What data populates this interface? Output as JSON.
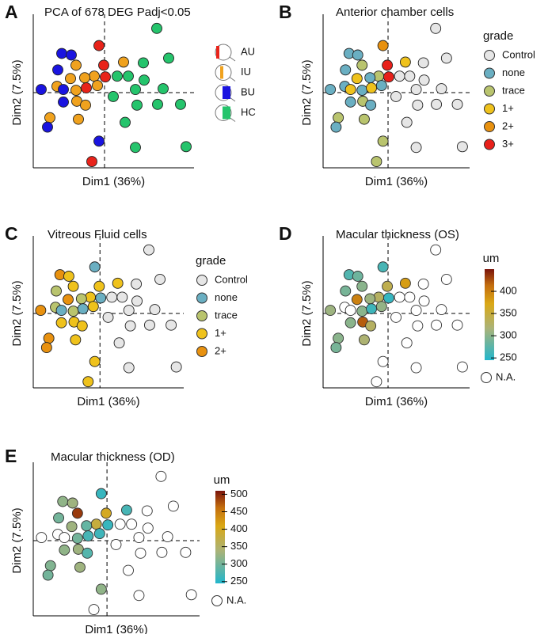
{
  "chart_data": [
    {
      "type": "scatter",
      "panel": "A",
      "title": "PCA of 678 DEG Padj<0.05",
      "xlabel": "Dim1 (36%)",
      "ylabel": "Dim2 (7.5%)",
      "xlim": [
        -9,
        11.3
      ],
      "ylim": [
        -9.6,
        9.6
      ],
      "vline": 0,
      "hline": 0,
      "x": [
        -0.7,
        6.6,
        -5.4,
        -4.2,
        -3.6,
        2.4,
        4.9,
        8.1,
        -5.9,
        -1.3,
        -0.1,
        0.1,
        1.6,
        3.0,
        5.0,
        -6.0,
        -4.3,
        -2.5,
        -0.9,
        1.1,
        3.9,
        7.4,
        -5.2,
        -3.6,
        -2.3,
        -8.0,
        6.7,
        9.6,
        -5.2,
        -3.5,
        -2.4,
        4.1,
        -6.9,
        -7.2,
        -3.3,
        2.6,
        -0.7,
        3.9,
        10.3,
        -1.6
      ],
      "y": [
        6.0,
        8.2,
        5.0,
        4.8,
        3.5,
        3.9,
        3.8,
        4.4,
        2.9,
        2.1,
        3.5,
        2.0,
        2.1,
        2.1,
        1.6,
        0.8,
        1.8,
        1.9,
        0.9,
        -0.5,
        0.4,
        0.5,
        0.4,
        0.3,
        0.6,
        0.4,
        -1.5,
        -1.5,
        -1.2,
        -1.1,
        -1.6,
        -1.6,
        -3.2,
        -4.4,
        -3.4,
        -3.8,
        -6.2,
        -7.0,
        -6.9,
        -8.8
      ],
      "groups": [
        "AU",
        "HC",
        "BU",
        "BU",
        "IU",
        "IU",
        "HC",
        "HC",
        "BU",
        "IU",
        "AU",
        "AU",
        "HC",
        "HC",
        "HC",
        "IU",
        "IU",
        "IU",
        "IU",
        "HC",
        "HC",
        "HC",
        "BU",
        "IU",
        "AU",
        "BU",
        "HC",
        "HC",
        "BU",
        "IU",
        "IU",
        "HC",
        "IU",
        "BU",
        "IU",
        "HC",
        "BU",
        "HC",
        "HC",
        "AU"
      ],
      "legend": [
        {
          "name": "AU",
          "color": "#e8231a"
        },
        {
          "name": "IU",
          "color": "#f0a21e"
        },
        {
          "name": "BU",
          "color": "#1a14e0"
        },
        {
          "name": "HC",
          "color": "#25c46c"
        }
      ]
    },
    {
      "type": "scatter",
      "panel": "B",
      "title": "Anterior chamber cells",
      "xlabel": "Dim1 (36%)",
      "ylabel": "Dim2 (7.5%)",
      "xlim": [
        -9,
        11.3
      ],
      "ylim": [
        -9.6,
        9.6
      ],
      "vline": 0,
      "hline": 0,
      "x": [
        -0.7,
        6.6,
        -5.4,
        -4.2,
        -3.6,
        2.4,
        4.9,
        8.1,
        -5.9,
        -1.3,
        -0.1,
        0.1,
        1.6,
        3.0,
        5.0,
        -6.0,
        -4.3,
        -2.5,
        -0.9,
        1.1,
        3.9,
        7.4,
        -5.2,
        -3.6,
        -2.3,
        -8.0,
        6.7,
        9.6,
        -5.2,
        -3.5,
        -2.4,
        4.1,
        -6.9,
        -7.2,
        -3.3,
        2.6,
        -0.7,
        3.9,
        10.3,
        -1.6
      ],
      "y": [
        6.0,
        8.2,
        5.0,
        4.8,
        3.5,
        3.9,
        3.8,
        4.4,
        2.9,
        2.1,
        3.5,
        2.0,
        2.1,
        2.1,
        1.6,
        0.8,
        1.8,
        1.9,
        0.9,
        -0.5,
        0.4,
        0.5,
        0.4,
        0.3,
        0.6,
        0.4,
        -1.5,
        -1.5,
        -1.2,
        -1.1,
        -1.6,
        -1.6,
        -3.2,
        -4.4,
        -3.4,
        -3.8,
        -6.2,
        -7.0,
        -6.9,
        -8.8
      ],
      "groups": [
        "2+",
        "Control",
        "none",
        "none",
        "trace",
        "1+",
        "Control",
        "Control",
        "none",
        "trace",
        "3+",
        "3+",
        "Control",
        "Control",
        "Control",
        "none",
        "1+",
        "none",
        "none",
        "Control",
        "Control",
        "Control",
        "1+",
        "none",
        "1+",
        "none",
        "Control",
        "Control",
        "none",
        "trace",
        "none",
        "Control",
        "trace",
        "none",
        "trace",
        "Control",
        "trace",
        "Control",
        "Control",
        "trace"
      ],
      "legend_title": "grade",
      "legend": [
        {
          "name": "Control",
          "color": "#e6e6e6"
        },
        {
          "name": "none",
          "color": "#6aafc2"
        },
        {
          "name": "trace",
          "color": "#b9c46e"
        },
        {
          "name": "1+",
          "color": "#efc21c"
        },
        {
          "name": "2+",
          "color": "#e8910f"
        },
        {
          "name": "3+",
          "color": "#e8201a"
        }
      ]
    },
    {
      "type": "scatter",
      "panel": "C",
      "title": "Vitreous Fluid cells",
      "xlabel": "Dim1 (36%)",
      "ylabel": "Dim2 (7.5%)",
      "xlim": [
        -9,
        11.3
      ],
      "ylim": [
        -9.6,
        9.6
      ],
      "vline": 0,
      "hline": 0,
      "x": [
        -0.7,
        6.6,
        -5.4,
        -4.2,
        -3.6,
        2.4,
        4.9,
        8.1,
        -5.9,
        -1.3,
        -0.1,
        0.1,
        1.6,
        3.0,
        5.0,
        -6.0,
        -4.3,
        -2.5,
        -0.9,
        1.1,
        3.9,
        7.4,
        -5.2,
        -3.6,
        -2.3,
        -8.0,
        6.7,
        9.6,
        -5.2,
        -3.5,
        -2.4,
        4.1,
        -6.9,
        -7.2,
        -3.3,
        2.6,
        -0.7,
        3.9,
        10.3,
        -1.6
      ],
      "y": [
        6.0,
        8.2,
        5.0,
        4.8,
        3.5,
        3.9,
        3.8,
        4.4,
        2.9,
        2.1,
        3.5,
        2.0,
        2.1,
        2.1,
        1.6,
        0.8,
        1.8,
        1.9,
        0.9,
        -0.5,
        0.4,
        0.5,
        0.4,
        0.3,
        0.6,
        0.4,
        -1.5,
        -1.5,
        -1.2,
        -1.1,
        -1.6,
        -1.6,
        -3.2,
        -4.4,
        -3.4,
        -3.8,
        -6.2,
        -7.0,
        -6.9,
        -8.8
      ],
      "groups": [
        "none",
        "Control",
        "2+",
        "1+",
        "1+",
        "1+",
        "Control",
        "Control",
        "trace",
        "1+",
        "1+",
        "none",
        "Control",
        "Control",
        "Control",
        "trace",
        "2+",
        "trace",
        "1+",
        "Control",
        "Control",
        "Control",
        "none",
        "trace",
        "none",
        "2+",
        "Control",
        "Control",
        "1+",
        "1+",
        "1+",
        "Control",
        "2+",
        "2+",
        "1+",
        "Control",
        "1+",
        "Control",
        "Control",
        "1+"
      ],
      "legend_title": "grade",
      "legend": [
        {
          "name": "Control",
          "color": "#e6e6e6"
        },
        {
          "name": "none",
          "color": "#6aafc2"
        },
        {
          "name": "trace",
          "color": "#b9c46e"
        },
        {
          "name": "1+",
          "color": "#efc21c"
        },
        {
          "name": "2+",
          "color": "#e8910f"
        }
      ]
    },
    {
      "type": "scatter-continuous",
      "panel": "D",
      "title": "Macular thickness (OS)",
      "xlabel": "Dim1 (36%)",
      "ylabel": "Dim2 (7.5%)",
      "xlim": [
        -9,
        11.3
      ],
      "ylim": [
        -9.6,
        9.6
      ],
      "vline": 0,
      "hline": 0,
      "x": [
        -0.7,
        6.6,
        -5.4,
        -4.2,
        -3.6,
        2.4,
        4.9,
        8.1,
        -5.9,
        -1.3,
        -0.1,
        0.1,
        1.6,
        3.0,
        5.0,
        -6.0,
        -4.3,
        -2.5,
        -0.9,
        1.1,
        3.9,
        7.4,
        -5.2,
        -3.6,
        -2.3,
        -8.0,
        6.7,
        9.6,
        -5.2,
        -3.5,
        -2.4,
        4.1,
        -6.9,
        -7.2,
        -3.3,
        2.6,
        -0.7,
        3.9,
        10.3,
        -1.6
      ],
      "y": [
        6.0,
        8.2,
        5.0,
        4.8,
        3.5,
        3.9,
        3.8,
        4.4,
        2.9,
        2.1,
        3.5,
        2.0,
        2.1,
        2.1,
        1.6,
        0.8,
        1.8,
        1.9,
        0.9,
        -0.5,
        0.4,
        0.5,
        0.4,
        0.3,
        0.6,
        0.4,
        -1.5,
        -1.5,
        -1.2,
        -1.1,
        -1.6,
        -1.6,
        -3.2,
        -4.4,
        -3.4,
        -3.8,
        -6.2,
        -7.0,
        -6.9,
        -8.8
      ],
      "values": [
        265,
        null,
        270,
        285,
        300,
        380,
        null,
        null,
        290,
        330,
        340,
        255,
        null,
        null,
        null,
        null,
        400,
        310,
        305,
        null,
        null,
        null,
        null,
        300,
        260,
        310,
        null,
        null,
        300,
        420,
        330,
        null,
        300,
        290,
        320,
        null,
        null,
        null,
        null,
        null
      ],
      "colorbar": {
        "title": "um",
        "lim": [
          245,
          450
        ],
        "ticks": [
          250,
          300,
          350,
          400
        ],
        "na_label": "N.A."
      }
    },
    {
      "type": "scatter-continuous",
      "panel": "E",
      "title": "Macular thickness (OD)",
      "xlabel": "Dim1 (36%)",
      "ylabel": "Dim2 (7.5%)",
      "xlim": [
        -9,
        11.3
      ],
      "ylim": [
        -9.6,
        9.6
      ],
      "vline": 0,
      "hline": 0,
      "x": [
        -0.7,
        6.6,
        -5.4,
        -4.2,
        -3.6,
        2.4,
        4.9,
        8.1,
        -5.9,
        -1.3,
        -0.1,
        0.1,
        1.6,
        3.0,
        5.0,
        -6.0,
        -4.3,
        -2.5,
        -0.9,
        1.1,
        3.9,
        7.4,
        -5.2,
        -3.6,
        -2.3,
        -8.0,
        6.7,
        9.6,
        -5.2,
        -3.5,
        -2.4,
        4.1,
        -6.9,
        -7.2,
        -3.3,
        2.6,
        -0.7,
        3.9,
        10.3,
        -1.6
      ],
      "y": [
        6.0,
        8.2,
        5.0,
        4.8,
        3.5,
        3.9,
        3.8,
        4.4,
        2.9,
        2.1,
        3.5,
        2.0,
        2.1,
        2.1,
        1.6,
        0.8,
        1.8,
        1.9,
        0.9,
        -0.5,
        0.4,
        0.5,
        0.4,
        0.3,
        0.6,
        0.4,
        -1.5,
        -1.5,
        -1.2,
        -1.1,
        -1.6,
        -1.6,
        -3.2,
        -4.4,
        -3.4,
        -3.8,
        -6.2,
        -7.0,
        -6.9,
        -8.8
      ],
      "values": [
        260,
        null,
        320,
        330,
        490,
        270,
        null,
        null,
        300,
        380,
        400,
        260,
        null,
        null,
        null,
        null,
        330,
        290,
        265,
        null,
        null,
        null,
        null,
        300,
        270,
        null,
        null,
        null,
        320,
        330,
        280,
        null,
        310,
        300,
        330,
        null,
        320,
        null,
        null,
        null
      ],
      "colorbar": {
        "title": "um",
        "lim": [
          245,
          510
        ],
        "ticks": [
          250,
          300,
          350,
          400,
          450,
          500
        ],
        "na_label": "N.A."
      }
    }
  ]
}
